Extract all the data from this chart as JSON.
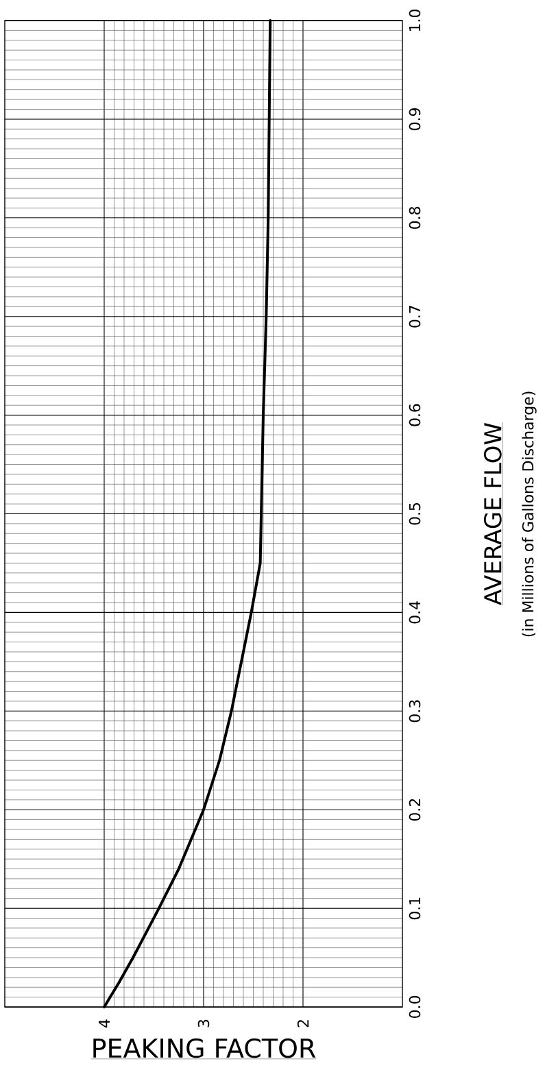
{
  "chart_data": {
    "type": "line",
    "xlabel": "PEAKING FACTOR",
    "ylabel": "AVERAGE FLOW",
    "annotations": [
      "(in Millions of Gallons Discharge)"
    ],
    "x": [
      4.0,
      3.85,
      3.71,
      3.58,
      3.45,
      3.25,
      3.0,
      2.84,
      2.72,
      2.62,
      2.52,
      2.43,
      2.42,
      2.4,
      2.37,
      2.35,
      2.34,
      2.33
    ],
    "series": [
      {
        "color": "#000000",
        "values": [
          0,
          0.025,
          0.05,
          0.075,
          0.1,
          0.14,
          0.2,
          0.25,
          0.3,
          0.35,
          0.4,
          0.45,
          0.5,
          0.6,
          0.7,
          0.8,
          0.9,
          1.0
        ]
      }
    ],
    "xlim": [
      5,
      1
    ],
    "xticks": [
      {
        "value": 4,
        "label": "4"
      },
      {
        "value": 3,
        "label": "3"
      },
      {
        "value": 2,
        "label": "2"
      }
    ],
    "ylim": [
      0,
      1
    ],
    "yticks": [
      {
        "value": 0,
        "label": "0.0"
      },
      {
        "value": 0.1,
        "label": "0.1"
      },
      {
        "value": 0.2,
        "label": "0.2"
      },
      {
        "value": 0.3,
        "label": "0.3"
      },
      {
        "value": 0.4,
        "label": "0.4"
      },
      {
        "value": 0.5,
        "label": "0.5"
      },
      {
        "value": 0.6,
        "label": "0.6"
      },
      {
        "value": 0.7,
        "label": "0.7"
      },
      {
        "value": 0.8,
        "label": "0.8"
      },
      {
        "value": 0.9,
        "label": "0.9"
      },
      {
        "value": 1,
        "label": "1.0"
      }
    ],
    "grid": true
  }
}
